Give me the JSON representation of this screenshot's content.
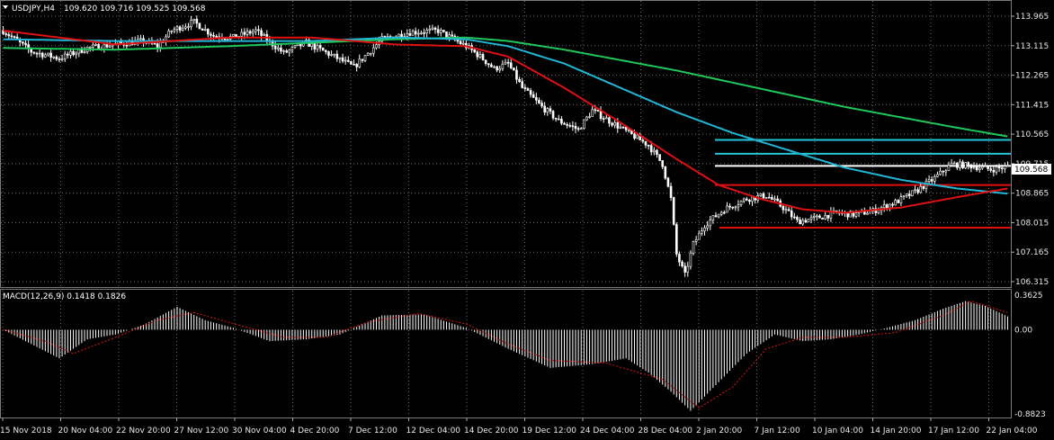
{
  "header": {
    "symbol": "USDJPY,H4",
    "ohlc": "109.620 109.716 109.525 109.568"
  },
  "macd": {
    "label": "MACD(12,26,9) 0.1418 0.1826",
    "ylim": [
      -0.8823,
      0.3625
    ],
    "ticks": [
      "0.3625",
      "0.00",
      "-0.8823"
    ],
    "tick_values": [
      0.3625,
      0,
      -0.8823
    ]
  },
  "price_axis": {
    "ticks": [
      "113.965",
      "113.115",
      "112.265",
      "111.415",
      "110.565",
      "109.715",
      "108.865",
      "108.015",
      "107.165",
      "106.315"
    ],
    "current": "109.568"
  },
  "time_axis": {
    "ticks": [
      "15 Nov 2018",
      "20 Nov 04:00",
      "22 Nov 20:00",
      "27 Nov 12:00",
      "30 Nov 04:00",
      "4 Dec 20:00",
      "7 Dec 12:00",
      "12 Dec 04:00",
      "14 Dec 20:00",
      "19 Dec 12:00",
      "24 Dec 04:00",
      "28 Dec 04:00",
      "2 Jan 20:00",
      "7 Jan 12:00",
      "10 Jan 04:00",
      "14 Jan 20:00",
      "17 Jan 12:00",
      "22 Jan 04:00"
    ]
  },
  "colors": {
    "bull": "#ffffff",
    "bear": "#ffffff",
    "grid": "#6a6a6a",
    "ma_fast": "#e01010",
    "ma_mid": "#22b6d6",
    "ma_slow": "#1fc85a",
    "level_cyan": "#22c6d6",
    "level_red": "#e01010",
    "level_white": "#ffffff",
    "macd_hist": "#ffffff",
    "macd_signal": "#e01010"
  },
  "chart_data": {
    "type": "candlestick",
    "ylim": [
      106.315,
      113.965
    ],
    "levels": [
      {
        "price": 110.4,
        "color": "cyan"
      },
      {
        "price": 110.0,
        "color": "cyan"
      },
      {
        "price": 109.65,
        "color": "white"
      },
      {
        "price": 109.1,
        "color": "red"
      },
      {
        "price": 107.87,
        "color": "red"
      }
    ],
    "price_keys": [
      [
        0,
        113.55
      ],
      [
        10,
        112.95
      ],
      [
        20,
        112.75
      ],
      [
        30,
        113.05
      ],
      [
        40,
        113.15
      ],
      [
        50,
        113.25
      ],
      [
        55,
        113.1
      ],
      [
        60,
        113.55
      ],
      [
        68,
        113.8
      ],
      [
        75,
        113.4
      ],
      [
        82,
        113.35
      ],
      [
        90,
        113.55
      ],
      [
        100,
        112.9
      ],
      [
        108,
        113.2
      ],
      [
        118,
        112.8
      ],
      [
        125,
        112.5
      ],
      [
        135,
        113.3
      ],
      [
        145,
        113.5
      ],
      [
        155,
        113.55
      ],
      [
        165,
        113.1
      ],
      [
        170,
        112.8
      ],
      [
        175,
        112.45
      ],
      [
        180,
        112.6
      ],
      [
        185,
        111.9
      ],
      [
        192,
        111.35
      ],
      [
        198,
        110.95
      ],
      [
        205,
        110.7
      ],
      [
        210,
        111.25
      ],
      [
        217,
        110.9
      ],
      [
        223,
        110.6
      ],
      [
        230,
        110.25
      ],
      [
        235,
        109.7
      ],
      [
        238,
        108.7
      ],
      [
        240,
        107.1
      ],
      [
        243,
        106.5
      ],
      [
        246,
        107.4
      ],
      [
        250,
        107.95
      ],
      [
        257,
        108.4
      ],
      [
        265,
        108.7
      ],
      [
        272,
        108.8
      ],
      [
        278,
        108.45
      ],
      [
        283,
        108.05
      ],
      [
        290,
        108.15
      ],
      [
        297,
        108.3
      ],
      [
        303,
        108.25
      ],
      [
        310,
        108.35
      ],
      [
        318,
        108.6
      ],
      [
        325,
        108.9
      ],
      [
        332,
        109.3
      ],
      [
        338,
        109.7
      ],
      [
        345,
        109.65
      ],
      [
        352,
        109.55
      ],
      [
        358,
        109.62
      ]
    ],
    "ma_fast": [
      [
        0,
        113.55
      ],
      [
        40,
        113.15
      ],
      [
        80,
        113.35
      ],
      [
        110,
        113.35
      ],
      [
        140,
        113.15
      ],
      [
        165,
        113.1
      ],
      [
        180,
        112.8
      ],
      [
        200,
        111.9
      ],
      [
        220,
        110.9
      ],
      [
        240,
        109.85
      ],
      [
        255,
        109.1
      ],
      [
        270,
        108.7
      ],
      [
        285,
        108.4
      ],
      [
        300,
        108.3
      ],
      [
        320,
        108.45
      ],
      [
        340,
        108.75
      ],
      [
        358,
        109.0
      ]
    ],
    "ma_mid": [
      [
        0,
        113.3
      ],
      [
        40,
        113.25
      ],
      [
        80,
        113.25
      ],
      [
        110,
        113.25
      ],
      [
        140,
        113.35
      ],
      [
        165,
        113.3
      ],
      [
        180,
        113.1
      ],
      [
        200,
        112.6
      ],
      [
        220,
        111.9
      ],
      [
        240,
        111.2
      ],
      [
        260,
        110.6
      ],
      [
        280,
        110.1
      ],
      [
        300,
        109.6
      ],
      [
        320,
        109.25
      ],
      [
        340,
        109.0
      ],
      [
        358,
        108.85
      ]
    ],
    "ma_slow": [
      [
        0,
        113.05
      ],
      [
        40,
        113.0
      ],
      [
        80,
        113.1
      ],
      [
        110,
        113.2
      ],
      [
        140,
        113.3
      ],
      [
        165,
        113.35
      ],
      [
        180,
        113.25
      ],
      [
        200,
        113.0
      ],
      [
        220,
        112.7
      ],
      [
        240,
        112.4
      ],
      [
        260,
        112.05
      ],
      [
        280,
        111.7
      ],
      [
        300,
        111.35
      ],
      [
        320,
        111.05
      ],
      [
        340,
        110.75
      ],
      [
        358,
        110.5
      ]
    ],
    "macd_keys": [
      [
        0,
        0.0
      ],
      [
        10,
        -0.15
      ],
      [
        20,
        -0.3
      ],
      [
        30,
        -0.1
      ],
      [
        40,
        -0.05
      ],
      [
        50,
        0.05
      ],
      [
        62,
        0.24
      ],
      [
        72,
        0.1
      ],
      [
        82,
        0.02
      ],
      [
        95,
        -0.12
      ],
      [
        108,
        -0.1
      ],
      [
        120,
        -0.05
      ],
      [
        135,
        0.15
      ],
      [
        150,
        0.16
      ],
      [
        165,
        0.02
      ],
      [
        180,
        -0.2
      ],
      [
        195,
        -0.4
      ],
      [
        210,
        -0.36
      ],
      [
        222,
        -0.3
      ],
      [
        230,
        -0.45
      ],
      [
        238,
        -0.65
      ],
      [
        245,
        -0.85
      ],
      [
        255,
        -0.55
      ],
      [
        265,
        -0.25
      ],
      [
        275,
        -0.05
      ],
      [
        285,
        -0.12
      ],
      [
        295,
        -0.1
      ],
      [
        305,
        -0.05
      ],
      [
        315,
        0.02
      ],
      [
        325,
        0.1
      ],
      [
        335,
        0.22
      ],
      [
        343,
        0.3
      ],
      [
        350,
        0.25
      ],
      [
        358,
        0.14
      ]
    ],
    "macd_signal_keys": [
      [
        0,
        0.0
      ],
      [
        15,
        -0.12
      ],
      [
        25,
        -0.25
      ],
      [
        40,
        -0.08
      ],
      [
        55,
        0.1
      ],
      [
        68,
        0.18
      ],
      [
        85,
        0.04
      ],
      [
        100,
        -0.08
      ],
      [
        115,
        -0.08
      ],
      [
        130,
        0.08
      ],
      [
        148,
        0.17
      ],
      [
        165,
        0.06
      ],
      [
        180,
        -0.15
      ],
      [
        195,
        -0.32
      ],
      [
        215,
        -0.35
      ],
      [
        235,
        -0.52
      ],
      [
        248,
        -0.82
      ],
      [
        260,
        -0.6
      ],
      [
        272,
        -0.2
      ],
      [
        285,
        -0.08
      ],
      [
        300,
        -0.08
      ],
      [
        318,
        -0.03
      ],
      [
        335,
        0.15
      ],
      [
        345,
        0.3
      ],
      [
        358,
        0.18
      ]
    ]
  }
}
